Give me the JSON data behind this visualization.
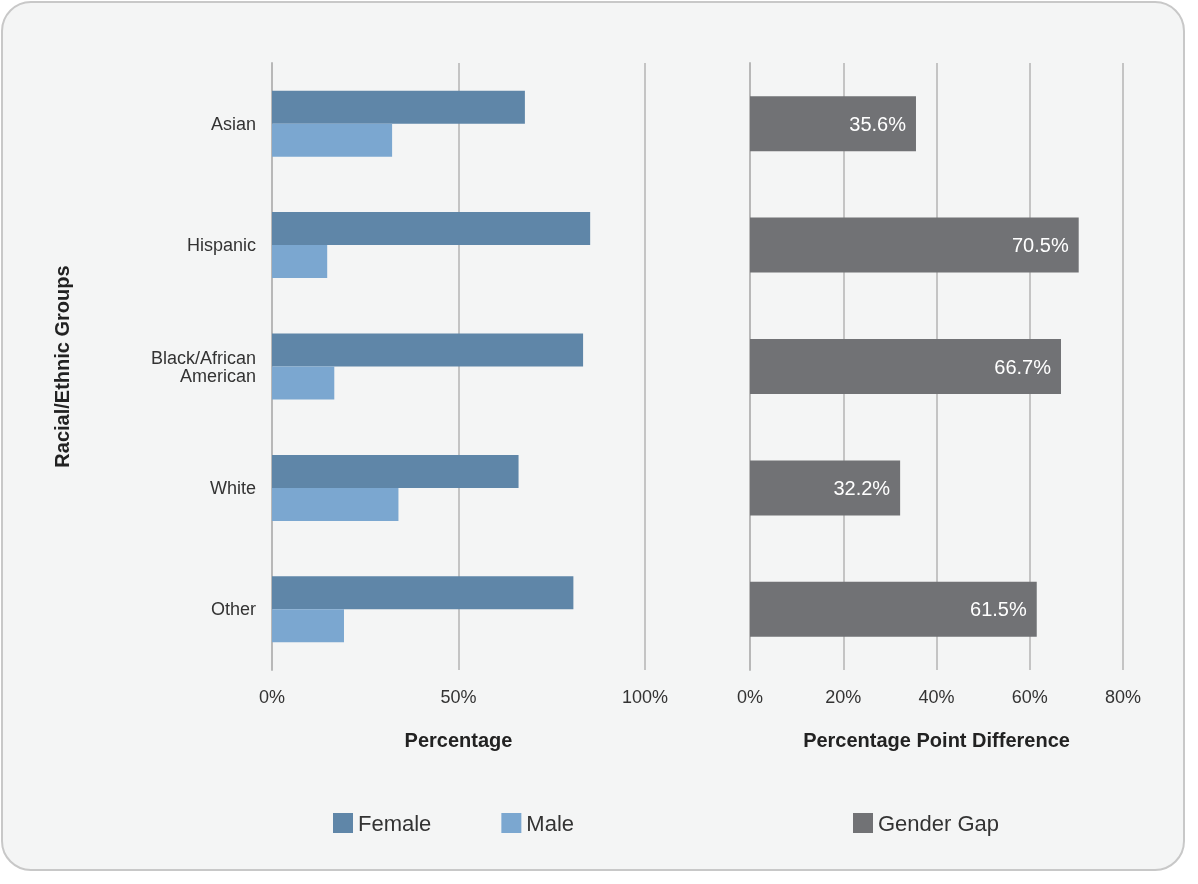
{
  "chart_data": [
    {
      "type": "bar",
      "orientation": "horizontal",
      "ylabel": "Racial/Ethnic Groups",
      "xlabel": "Percentage",
      "categories": [
        "Asian",
        "Hispanic",
        "Black/African American",
        "White",
        "Other"
      ],
      "series": [
        {
          "name": "Female",
          "color": "#5f86a8",
          "values": [
            67.8,
            85.3,
            83.4,
            66.1,
            80.8
          ]
        },
        {
          "name": "Male",
          "color": "#7ba7d0",
          "values": [
            32.2,
            14.8,
            16.7,
            33.9,
            19.3
          ]
        }
      ],
      "xlim": [
        0,
        100
      ],
      "xticks": [
        {
          "value": 0,
          "label": "0%"
        },
        {
          "value": 50,
          "label": "50%"
        },
        {
          "value": 100,
          "label": "100%"
        }
      ],
      "grid": "x",
      "legend": "bottom"
    },
    {
      "type": "bar",
      "orientation": "horizontal",
      "xlabel": "Percentage Point Difference",
      "categories": [
        null,
        null,
        null,
        null,
        null
      ],
      "series": [
        {
          "name": "Gender Gap",
          "color": "#717275",
          "values": [
            35.6,
            70.5,
            66.7,
            32.2,
            61.5
          ],
          "value_labels": [
            "35.6%",
            "70.5%",
            "66.7%",
            "32.2%",
            "61.5%"
          ]
        }
      ],
      "xlim": [
        0,
        80
      ],
      "xticks": [
        {
          "value": 0,
          "label": "0%"
        },
        {
          "value": 20,
          "label": "20%"
        },
        {
          "value": 40,
          "label": "40%"
        },
        {
          "value": 60,
          "label": "60%"
        },
        {
          "value": 80,
          "label": "80%"
        }
      ],
      "grid": "x",
      "legend": "bottom",
      "tick_labels": "x"
    }
  ]
}
